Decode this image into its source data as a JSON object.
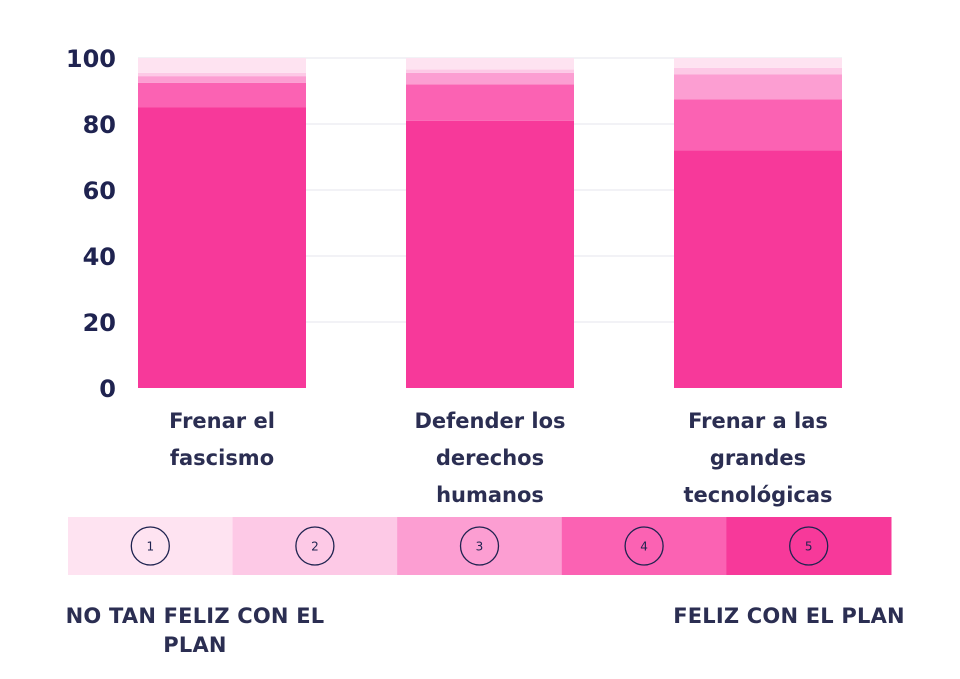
{
  "chart_data": {
    "type": "bar",
    "stacked": true,
    "categories": [
      [
        "Frenar el",
        "fascismo"
      ],
      [
        "Defender los",
        "derechos",
        "humanos"
      ],
      [
        "Frenar a las",
        "grandes",
        "tecnológicas"
      ]
    ],
    "series": [
      {
        "name": "5",
        "color": "#f7399a",
        "values": [
          85,
          81,
          72
        ]
      },
      {
        "name": "4",
        "color": "#fb62b3",
        "values": [
          7.5,
          11,
          15.5
        ]
      },
      {
        "name": "3",
        "color": "#fc9ed2",
        "values": [
          2,
          3.5,
          7.5
        ]
      },
      {
        "name": "2",
        "color": "#fdc9e6",
        "values": [
          1,
          1,
          2
        ]
      },
      {
        "name": "1",
        "color": "#fee3f1",
        "values": [
          4.5,
          3.5,
          3
        ]
      }
    ],
    "ylim": [
      0,
      100
    ],
    "yticks": [
      0,
      20,
      40,
      60,
      80,
      100
    ],
    "grid": true,
    "scale_legend": {
      "items": [
        {
          "label": "1",
          "color": "#fee3f1"
        },
        {
          "label": "2",
          "color": "#fdc9e6"
        },
        {
          "label": "3",
          "color": "#fc9ed2"
        },
        {
          "label": "4",
          "color": "#fb62b3"
        },
        {
          "label": "5",
          "color": "#f7399a"
        }
      ],
      "left_label": "NO TAN FELIZ CON EL PLAN",
      "right_label": "FELIZ CON EL PLAN"
    }
  }
}
